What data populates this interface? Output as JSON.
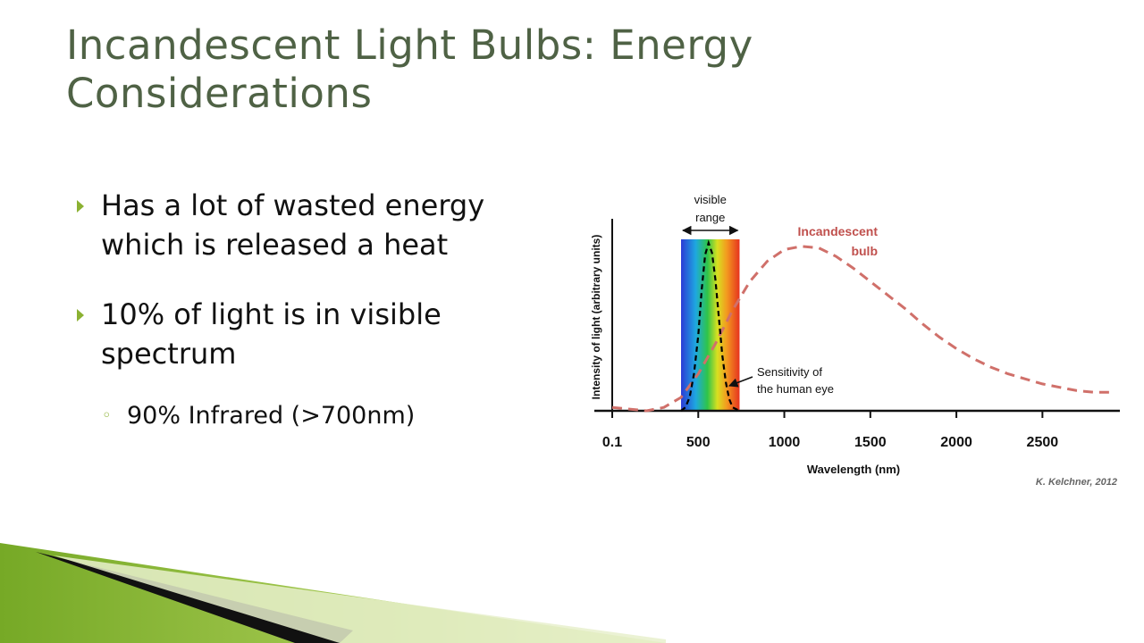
{
  "slide": {
    "title": "Incandescent Light Bulbs: Energy Considerations",
    "bullets": [
      "Has a lot of wasted energy which is released a heat",
      "10% of light is in visible spectrum"
    ],
    "sub_bullets": [
      "90% Infrared (>700nm)"
    ],
    "accent_color": "#8bb132",
    "title_color": "#4f6245"
  },
  "chart_data": {
    "type": "line",
    "xlabel": "Wavelength (nm)",
    "ylabel": "Intensity of light (arbitrary units)",
    "x_ticks": [
      0.1,
      500,
      1000,
      1500,
      2000,
      2500
    ],
    "x_tick_labels": [
      "0.1",
      "500",
      "1000",
      "1500",
      "2000",
      "2500"
    ],
    "xlim": [
      0,
      2950
    ],
    "ylim": [
      0,
      1
    ],
    "visible_range": {
      "label": "visible range",
      "from": 400,
      "to": 740
    },
    "series": [
      {
        "name": "Incandescent bulb",
        "color": "#d0706a",
        "style": "dashed",
        "x": [
          0,
          200,
          300,
          400,
          500,
          600,
          700,
          800,
          900,
          1000,
          1100,
          1200,
          1300,
          1400,
          1500,
          1600,
          1700,
          1800,
          1900,
          2000,
          2100,
          2200,
          2300,
          2400,
          2500,
          2600,
          2700,
          2800,
          2900
        ],
        "y": [
          0.02,
          0.0,
          0.02,
          0.08,
          0.22,
          0.4,
          0.6,
          0.77,
          0.89,
          0.96,
          0.98,
          0.97,
          0.92,
          0.85,
          0.77,
          0.69,
          0.61,
          0.52,
          0.44,
          0.37,
          0.31,
          0.26,
          0.22,
          0.19,
          0.16,
          0.14,
          0.12,
          0.11,
          0.11
        ]
      },
      {
        "name": "Sensitivity of the human eye",
        "color": "#000000",
        "style": "dashed",
        "x": [
          400,
          425,
          450,
          475,
          500,
          520,
          540,
          560,
          580,
          600,
          620,
          640,
          660,
          680,
          700,
          720,
          740
        ],
        "y": [
          0.0,
          0.02,
          0.08,
          0.22,
          0.45,
          0.72,
          0.93,
          1.0,
          0.94,
          0.78,
          0.55,
          0.33,
          0.17,
          0.07,
          0.02,
          0.01,
          0.0
        ]
      }
    ],
    "annotations": [
      {
        "lines": [
          "Incandescent",
          "bulb"
        ]
      },
      {
        "lines": [
          "Sensitivity of",
          "the human eye"
        ]
      }
    ],
    "credit": "K. Kelchner, 2012",
    "grid": false
  }
}
